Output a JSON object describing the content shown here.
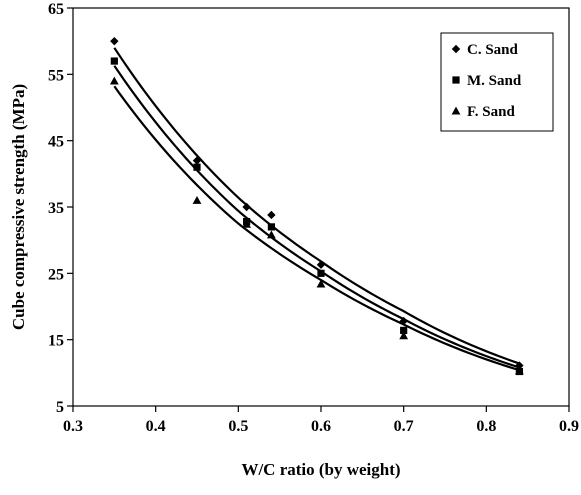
{
  "chart_data": {
    "type": "scatter",
    "xlabel": "W/C ratio (by weight)",
    "ylabel": "Cube compressive strength (MPa)",
    "xlim": [
      0.3,
      0.9
    ],
    "ylim": [
      5,
      65
    ],
    "xticks": [
      "0.3",
      "0.4",
      "0.5",
      "0.6",
      "0.7",
      "0.8",
      "0.9"
    ],
    "yticks": [
      "5",
      "15",
      "25",
      "35",
      "45",
      "55",
      "65"
    ],
    "grid": false,
    "legend_position": "top-right",
    "trendline": "exponential",
    "series": [
      {
        "name": "C. Sand",
        "marker": "diamond",
        "x": [
          0.35,
          0.45,
          0.51,
          0.54,
          0.6,
          0.7,
          0.84
        ],
        "y": [
          60.0,
          42.0,
          35.0,
          33.8,
          26.3,
          17.8,
          11.1
        ],
        "fit": [
          [
            0.35,
            59.0
          ],
          [
            0.5,
            36.4
          ],
          [
            0.6,
            26.8
          ],
          [
            0.7,
            19.3
          ],
          [
            0.84,
            11.4
          ]
        ]
      },
      {
        "name": "M. Sand",
        "marker": "square",
        "x": [
          0.35,
          0.45,
          0.51,
          0.54,
          0.6,
          0.7,
          0.84
        ],
        "y": [
          57.0,
          41.0,
          32.8,
          32.0,
          25.0,
          16.4,
          10.2
        ],
        "fit": [
          [
            0.35,
            56.3
          ],
          [
            0.5,
            34.4
          ],
          [
            0.6,
            25.3
          ],
          [
            0.7,
            18.1
          ],
          [
            0.84,
            10.8
          ]
        ]
      },
      {
        "name": "F. Sand",
        "marker": "triangle",
        "x": [
          0.35,
          0.45,
          0.51,
          0.54,
          0.6,
          0.7,
          0.84
        ],
        "y": [
          54.0,
          36.0,
          32.4,
          30.8,
          23.4,
          15.6,
          10.3
        ],
        "fit": [
          [
            0.35,
            53.2
          ],
          [
            0.5,
            32.5
          ],
          [
            0.6,
            24.0
          ],
          [
            0.7,
            17.3
          ],
          [
            0.84,
            10.4
          ]
        ]
      }
    ]
  }
}
